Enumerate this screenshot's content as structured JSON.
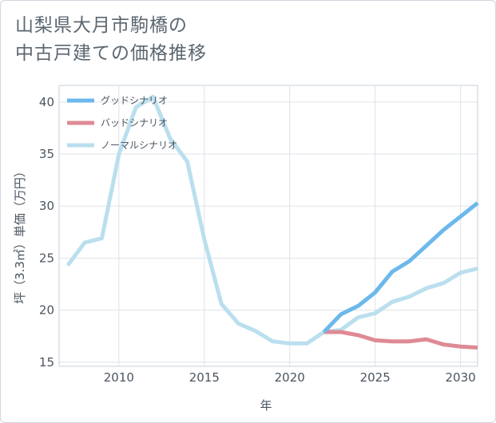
{
  "title_lines": [
    "山梨県大月市駒橋の",
    "中古戸建ての価格推移"
  ],
  "chart_data": {
    "type": "line",
    "title": "山梨県大月市駒橋の中古戸建ての価格推移",
    "xlabel": "年",
    "ylabel": "坪（3.3㎡）単価（万円）",
    "xlim": [
      2006.5,
      2031
    ],
    "ylim": [
      14.6,
      41.6
    ],
    "xticks": [
      2010,
      2015,
      2020,
      2025,
      2030
    ],
    "yticks": [
      15,
      20,
      25,
      30,
      35,
      40
    ],
    "grid": true,
    "legend_position": "top-left",
    "series": [
      {
        "name": "グッドシナリオ",
        "color": "#6cb8ec",
        "x": [
          2022,
          2023,
          2024,
          2025,
          2026,
          2027,
          2028,
          2029,
          2030,
          2031
        ],
        "values": [
          17.9,
          19.6,
          20.4,
          21.7,
          23.7,
          24.7,
          26.2,
          27.7,
          29.0,
          30.3
        ]
      },
      {
        "name": "バッドシナリオ",
        "color": "#de8a94",
        "x": [
          2022,
          2023,
          2024,
          2025,
          2026,
          2027,
          2028,
          2029,
          2030,
          2031
        ],
        "values": [
          17.9,
          17.9,
          17.6,
          17.1,
          17.0,
          17.0,
          17.2,
          16.7,
          16.5,
          16.4
        ]
      },
      {
        "name": "ノーマルシナリオ",
        "color": "#badfee",
        "x": [
          2007,
          2008,
          2009,
          2010,
          2011,
          2012,
          2013,
          2014,
          2015,
          2016,
          2017,
          2018,
          2019,
          2020,
          2021,
          2022,
          2023,
          2024,
          2025,
          2026,
          2027,
          2028,
          2029,
          2030,
          2031
        ],
        "values": [
          24.3,
          26.5,
          26.9,
          35.0,
          39.5,
          40.5,
          36.5,
          34.3,
          26.8,
          20.6,
          18.7,
          18.0,
          17.0,
          16.8,
          16.8,
          17.9,
          18.1,
          19.3,
          19.7,
          20.8,
          21.3,
          22.1,
          22.6,
          23.6,
          24.0
        ]
      }
    ]
  }
}
